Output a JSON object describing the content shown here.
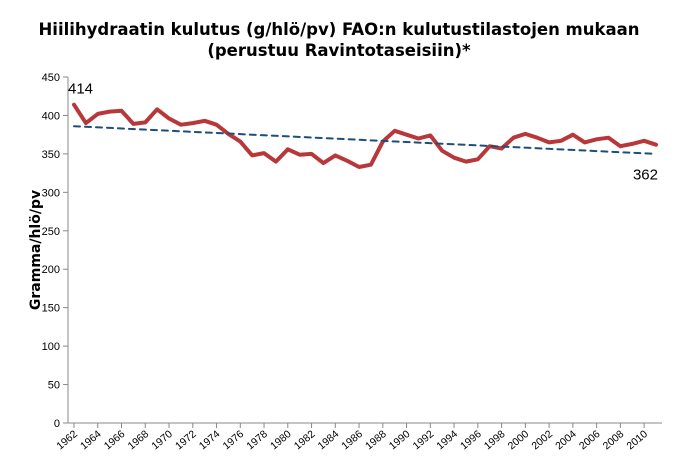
{
  "chart_data": {
    "type": "line",
    "title": "Hiilihydraatin kulutus (g/hlö/pv) FAO:n kulutustilastojen mukaan",
    "subtitle": "(perustuu Ravintotaseisiin)*",
    "xlabel": "",
    "ylabel": "Gramma/hlö/pv",
    "ylim": [
      0,
      450
    ],
    "yticks": [
      0,
      50,
      100,
      150,
      200,
      250,
      300,
      350,
      400,
      450
    ],
    "xlim": [
      1962,
      2011
    ],
    "xtick_labels": [
      "1962",
      "1964",
      "1966",
      "1968",
      "1970",
      "1972",
      "1974",
      "1976",
      "1978",
      "1980",
      "1982",
      "1984",
      "1986",
      "1988",
      "1990",
      "1992",
      "1994",
      "1996",
      "1998",
      "2000",
      "2002",
      "2004",
      "2006",
      "2008",
      "2010"
    ],
    "grid": false,
    "legend": "none",
    "series": [
      {
        "color": "#b8383a",
        "x": [
          1962,
          1963,
          1964,
          1965,
          1966,
          1967,
          1968,
          1969,
          1970,
          1971,
          1972,
          1973,
          1974,
          1975,
          1976,
          1977,
          1978,
          1979,
          1980,
          1981,
          1982,
          1983,
          1984,
          1985,
          1986,
          1987,
          1988,
          1989,
          1990,
          1991,
          1992,
          1993,
          1994,
          1995,
          1996,
          1997,
          1998,
          1999,
          2000,
          2001,
          2002,
          2003,
          2004,
          2005,
          2006,
          2007,
          2008,
          2009,
          2010,
          2011
        ],
        "values": [
          414,
          390,
          402,
          405,
          406,
          389,
          391,
          408,
          396,
          388,
          390,
          393,
          388,
          376,
          366,
          348,
          351,
          340,
          356,
          349,
          350,
          338,
          348,
          341,
          333,
          336,
          366,
          380,
          375,
          370,
          374,
          354,
          345,
          340,
          343,
          360,
          357,
          371,
          376,
          371,
          365,
          367,
          375,
          365,
          369,
          371,
          360,
          363,
          367,
          362
        ]
      },
      {
        "style": "dashed",
        "color": "#1f4e79",
        "x": [
          1962,
          2011
        ],
        "values": [
          386,
          350
        ]
      }
    ],
    "annotations": [
      {
        "text": "414",
        "x": 1962,
        "y": 414
      },
      {
        "text": "362",
        "x": 2011,
        "y": 362
      }
    ]
  }
}
